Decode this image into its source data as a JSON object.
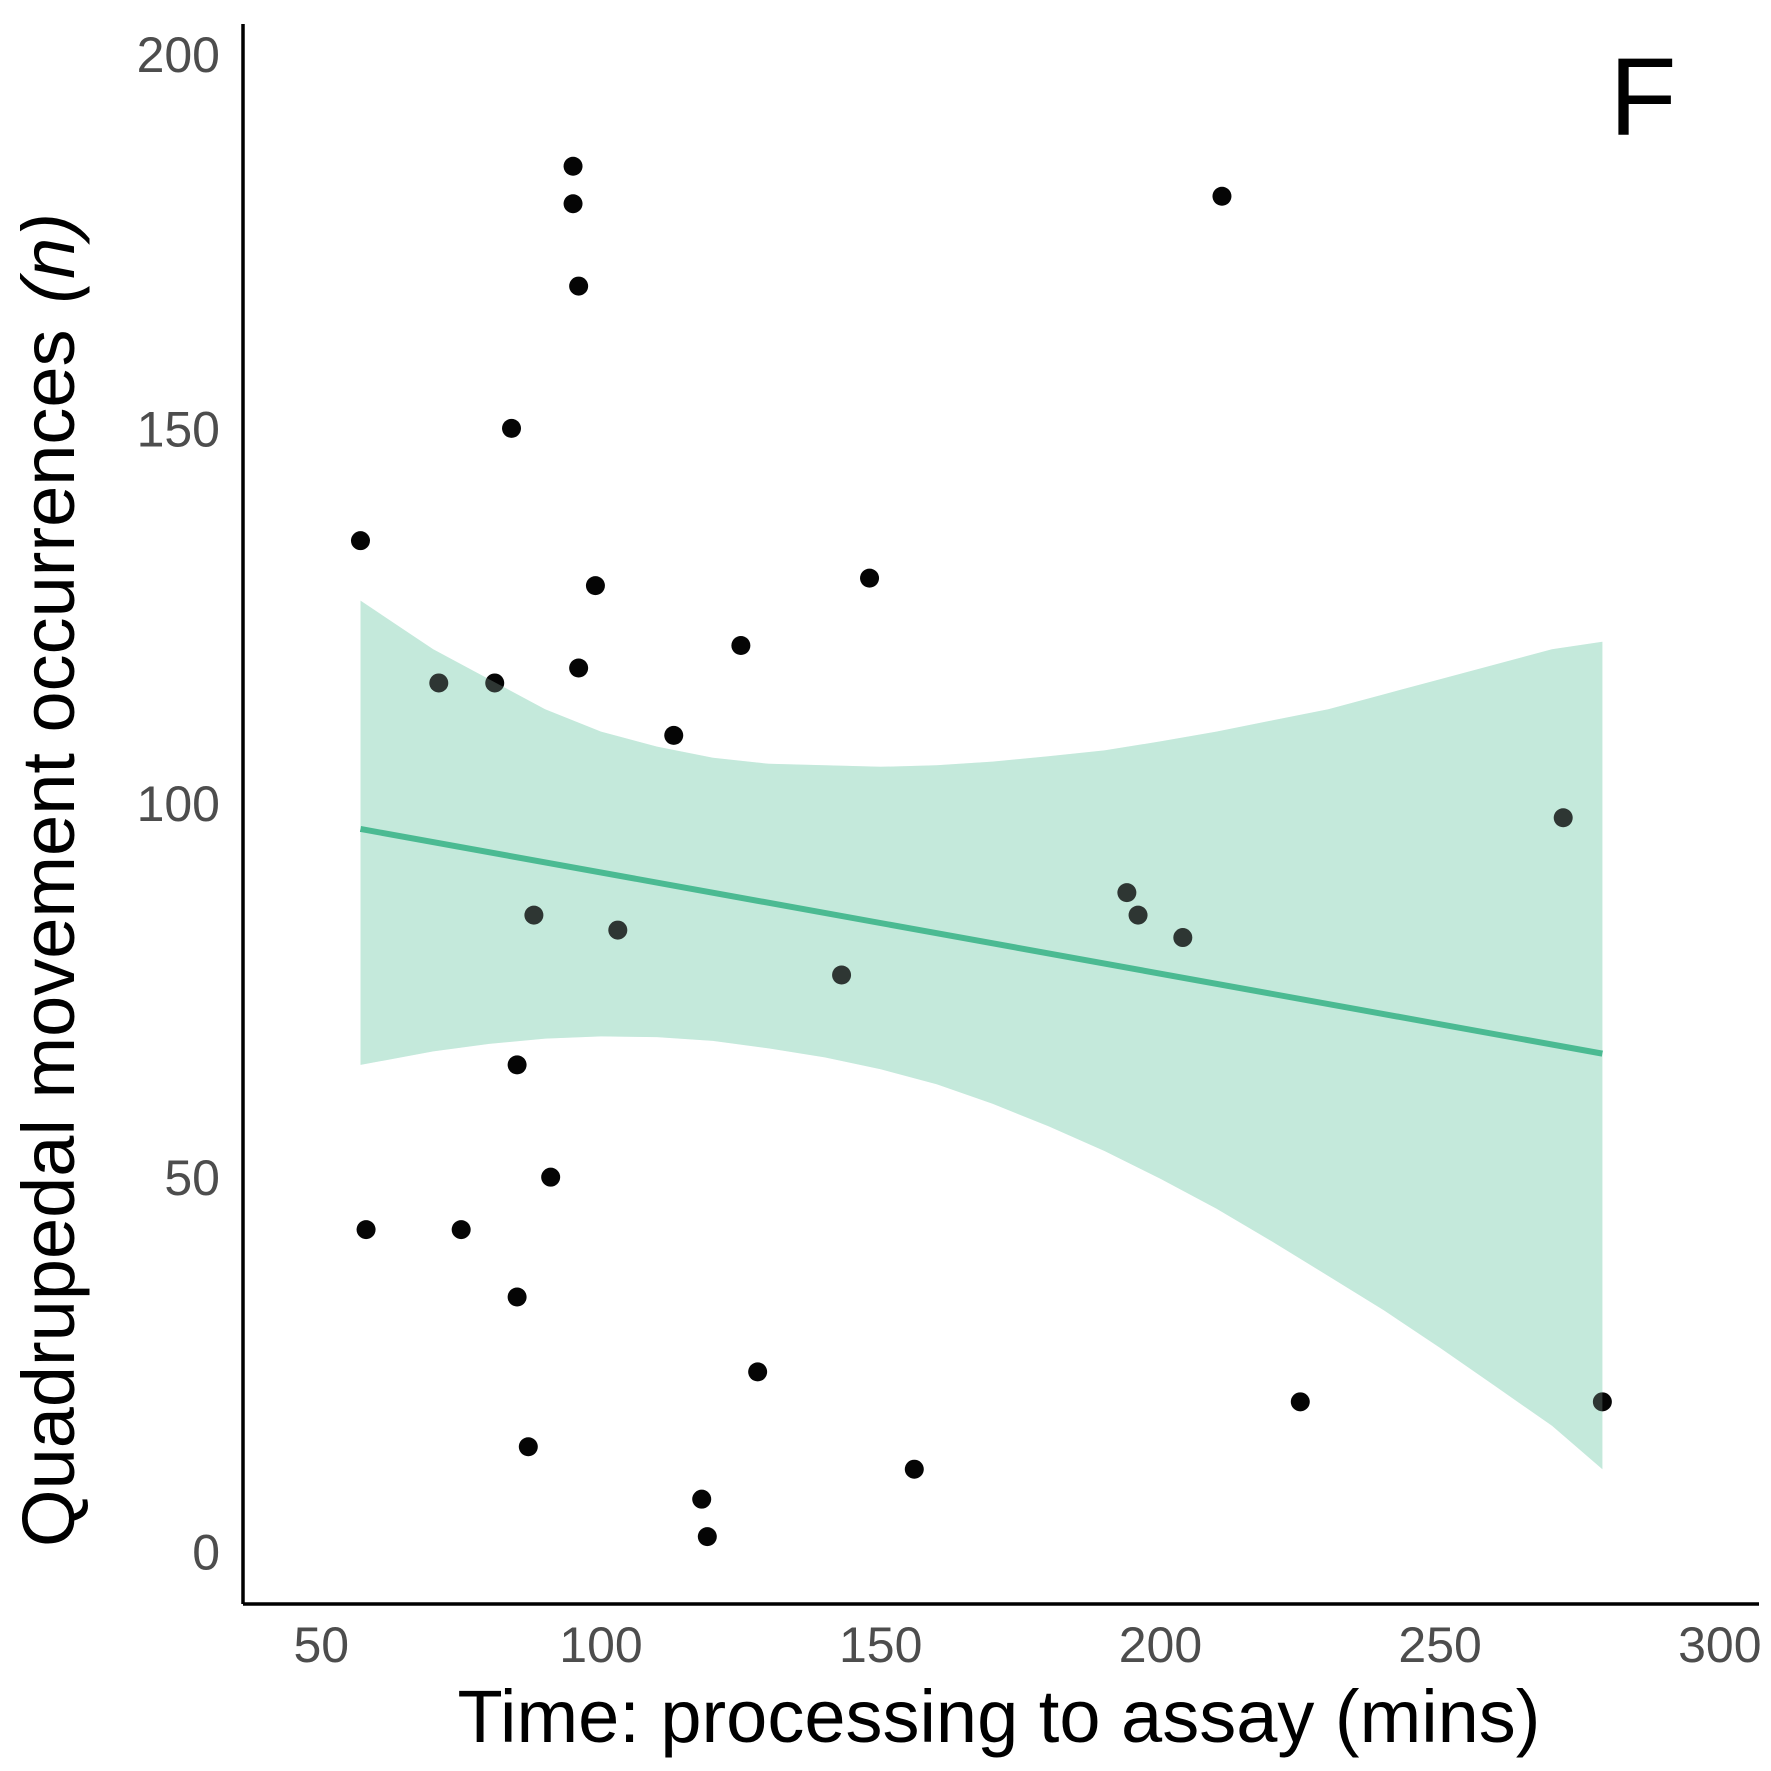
{
  "chart_data": {
    "type": "scatter",
    "panel_label": "F",
    "xlabel": "Time: processing to assay (mins)",
    "ylabel_main": "Quadrupedal movement occurrences",
    "ylabel_italic": "(n)",
    "xlim": [
      36,
      307
    ],
    "ylim": [
      -7,
      204
    ],
    "x_ticks": [
      50,
      100,
      150,
      200,
      250,
      300
    ],
    "y_ticks": [
      0,
      50,
      100,
      150,
      200
    ],
    "grid": false,
    "colors": {
      "points": "#000000",
      "fit_line": "#2aae7e",
      "ribbon": "#c4e9dc",
      "axis": "#000000",
      "tick_label": "#4d4d4d"
    },
    "points": [
      {
        "x": 57,
        "y": 135
      },
      {
        "x": 58,
        "y": 43
      },
      {
        "x": 71,
        "y": 116
      },
      {
        "x": 75,
        "y": 43
      },
      {
        "x": 81,
        "y": 116
      },
      {
        "x": 84,
        "y": 150
      },
      {
        "x": 85,
        "y": 65
      },
      {
        "x": 85,
        "y": 34
      },
      {
        "x": 87,
        "y": 14
      },
      {
        "x": 88,
        "y": 85
      },
      {
        "x": 91,
        "y": 50
      },
      {
        "x": 95,
        "y": 185
      },
      {
        "x": 95,
        "y": 180
      },
      {
        "x": 96,
        "y": 169
      },
      {
        "x": 96,
        "y": 118
      },
      {
        "x": 99,
        "y": 129
      },
      {
        "x": 103,
        "y": 83
      },
      {
        "x": 113,
        "y": 109
      },
      {
        "x": 118,
        "y": 7
      },
      {
        "x": 119,
        "y": 2
      },
      {
        "x": 125,
        "y": 121
      },
      {
        "x": 128,
        "y": 24
      },
      {
        "x": 143,
        "y": 77
      },
      {
        "x": 148,
        "y": 130
      },
      {
        "x": 156,
        "y": 11
      },
      {
        "x": 194,
        "y": 88
      },
      {
        "x": 196,
        "y": 85
      },
      {
        "x": 204,
        "y": 82
      },
      {
        "x": 211,
        "y": 181
      },
      {
        "x": 225,
        "y": 20
      },
      {
        "x": 272,
        "y": 98
      },
      {
        "x": 279,
        "y": 20
      }
    ],
    "fit_line": {
      "x": [
        57,
        279
      ],
      "y": [
        96.5,
        66.5
      ]
    },
    "confidence_band": {
      "x": [
        57,
        70,
        80,
        90,
        100,
        110,
        120,
        130,
        140,
        150,
        160,
        170,
        180,
        190,
        200,
        210,
        220,
        230,
        240,
        250,
        260,
        270,
        279
      ],
      "upper": [
        127,
        120.5,
        116.5,
        112.5,
        109.5,
        107.5,
        106,
        105.2,
        105,
        104.8,
        105,
        105.5,
        106.2,
        107,
        108.2,
        109.5,
        111,
        112.5,
        114.5,
        116.5,
        118.5,
        120.5,
        121.5
      ],
      "lower": [
        65,
        66.8,
        67.8,
        68.5,
        68.8,
        68.7,
        68.2,
        67.2,
        66,
        64.4,
        62.4,
        59.8,
        56.8,
        53.5,
        49.8,
        45.8,
        41.4,
        36.8,
        32.2,
        27.2,
        22,
        16.8,
        11
      ]
    }
  }
}
